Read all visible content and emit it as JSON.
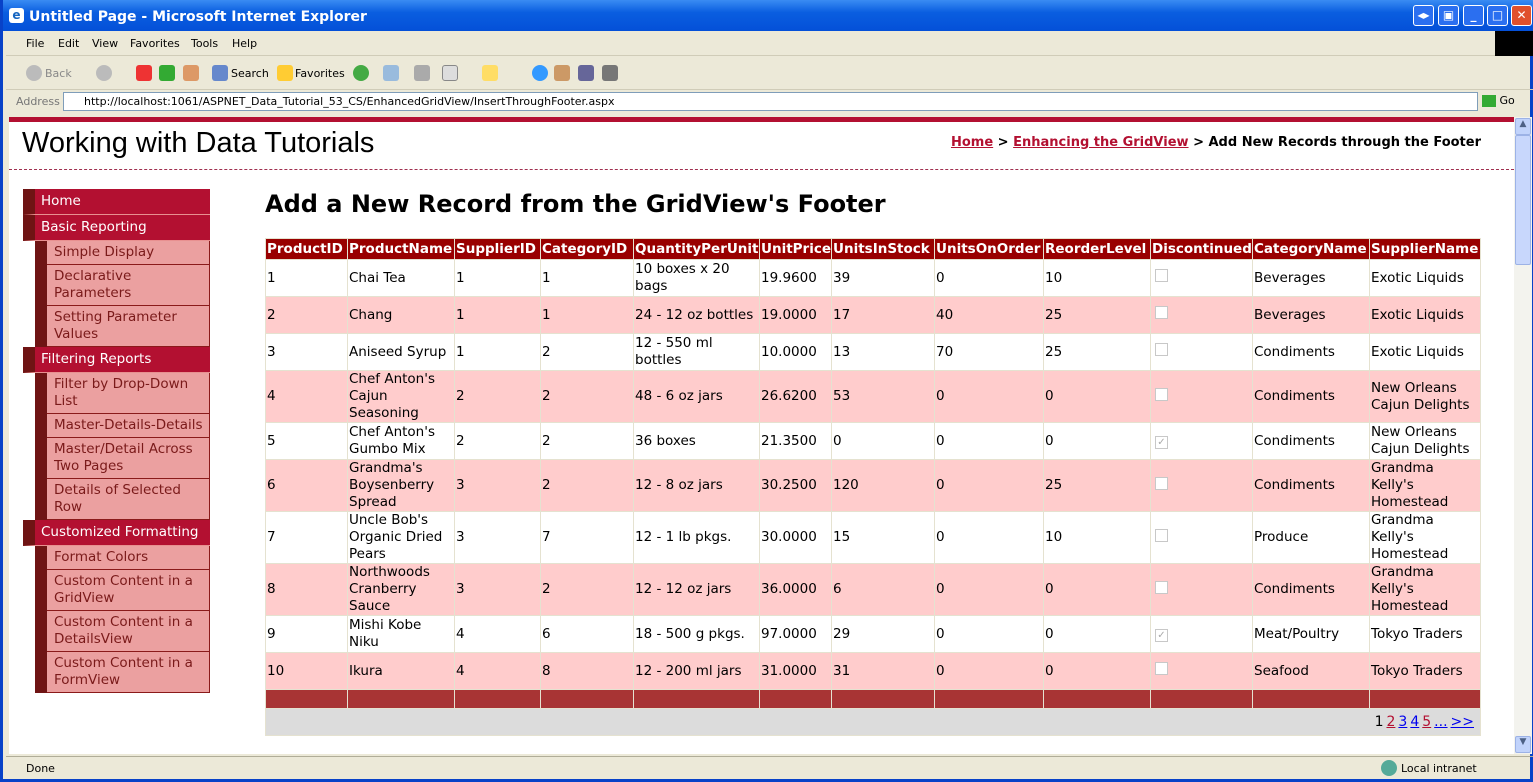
{
  "window": {
    "title": "Untitled Page - Microsoft Internet Explorer"
  },
  "menu": [
    "File",
    "Edit",
    "View",
    "Favorites",
    "Tools",
    "Help"
  ],
  "toolbar": {
    "back": "Back",
    "search": "Search",
    "favorites": "Favorites"
  },
  "address": {
    "label": "Address",
    "url": "http://localhost:1061/ASPNET_Data_Tutorial_53_CS/EnhancedGridView/InsertThroughFooter.aspx",
    "go": "Go"
  },
  "status": {
    "text": "Done",
    "zone": "Local intranet"
  },
  "page": {
    "site_title": "Working with Data Tutorials",
    "breadcrumb": {
      "home": "Home",
      "parent": "Enhancing the GridView",
      "sep": " > ",
      "current": "Add New Records through the Footer"
    },
    "heading": "Add a New Record from the GridView's Footer"
  },
  "sidebar": [
    {
      "type": "top",
      "label": "Home"
    },
    {
      "type": "top",
      "label": "Basic Reporting"
    },
    {
      "type": "sub",
      "label": "Simple Display"
    },
    {
      "type": "sub",
      "label": "Declarative Parameters"
    },
    {
      "type": "sub",
      "label": "Setting Parameter Values"
    },
    {
      "type": "top",
      "label": "Filtering Reports"
    },
    {
      "type": "sub",
      "label": "Filter by Drop-Down List"
    },
    {
      "type": "sub",
      "label": "Master-Details-Details"
    },
    {
      "type": "sub",
      "label": "Master/Detail Across Two Pages"
    },
    {
      "type": "sub",
      "label": "Details of Selected Row"
    },
    {
      "type": "top",
      "label": "Customized Formatting"
    },
    {
      "type": "sub",
      "label": "Format Colors"
    },
    {
      "type": "sub",
      "label": "Custom Content in a GridView"
    },
    {
      "type": "sub",
      "label": "Custom Content in a DetailsView"
    },
    {
      "type": "sub",
      "label": "Custom Content in a FormView"
    }
  ],
  "grid": {
    "columns": [
      "ProductID",
      "ProductName",
      "SupplierID",
      "CategoryID",
      "QuantityPerUnit",
      "UnitPrice",
      "UnitsInStock",
      "UnitsOnOrder",
      "ReorderLevel",
      "Discontinued",
      "CategoryName",
      "SupplierName"
    ],
    "rows": [
      [
        "1",
        "Chai Tea",
        "1",
        "1",
        "10 boxes x 20 bags",
        "19.9600",
        "39",
        "0",
        "10",
        false,
        "Beverages",
        "Exotic Liquids"
      ],
      [
        "2",
        "Chang",
        "1",
        "1",
        "24 - 12 oz bottles",
        "19.0000",
        "17",
        "40",
        "25",
        false,
        "Beverages",
        "Exotic Liquids"
      ],
      [
        "3",
        "Aniseed Syrup",
        "1",
        "2",
        "12 - 550 ml bottles",
        "10.0000",
        "13",
        "70",
        "25",
        false,
        "Condiments",
        "Exotic Liquids"
      ],
      [
        "4",
        "Chef Anton's Cajun Seasoning",
        "2",
        "2",
        "48 - 6 oz jars",
        "26.6200",
        "53",
        "0",
        "0",
        false,
        "Condiments",
        "New Orleans Cajun Delights"
      ],
      [
        "5",
        "Chef Anton's Gumbo Mix",
        "2",
        "2",
        "36 boxes",
        "21.3500",
        "0",
        "0",
        "0",
        true,
        "Condiments",
        "New Orleans Cajun Delights"
      ],
      [
        "6",
        "Grandma's Boysenberry Spread",
        "3",
        "2",
        "12 - 8 oz jars",
        "30.2500",
        "120",
        "0",
        "25",
        false,
        "Condiments",
        "Grandma Kelly's Homestead"
      ],
      [
        "7",
        "Uncle Bob's Organic Dried Pears",
        "3",
        "7",
        "12 - 1 lb pkgs.",
        "30.0000",
        "15",
        "0",
        "10",
        false,
        "Produce",
        "Grandma Kelly's Homestead"
      ],
      [
        "8",
        "Northwoods Cranberry Sauce",
        "3",
        "2",
        "12 - 12 oz jars",
        "36.0000",
        "6",
        "0",
        "0",
        false,
        "Condiments",
        "Grandma Kelly's Homestead"
      ],
      [
        "9",
        "Mishi Kobe Niku",
        "4",
        "6",
        "18 - 500 g pkgs.",
        "97.0000",
        "29",
        "0",
        "0",
        true,
        "Meat/Poultry",
        "Tokyo Traders"
      ],
      [
        "10",
        "Ikura",
        "4",
        "8",
        "12 - 200 ml jars",
        "31.0000",
        "31",
        "0",
        "0",
        false,
        "Seafood",
        "Tokyo Traders"
      ]
    ],
    "pager": {
      "current": "1",
      "links": [
        {
          "t": "2",
          "c": "#b31031"
        },
        {
          "t": "3",
          "c": "#0000ee"
        },
        {
          "t": "4",
          "c": "#0000ee"
        },
        {
          "t": "5",
          "c": "#b31031"
        },
        {
          "t": "...",
          "c": "#0000ee"
        },
        {
          "t": ">>",
          "c": "#0000ee"
        }
      ]
    }
  },
  "colors": {
    "accent": "#b31031",
    "header": "#990000",
    "alt_row": "#ffcccc",
    "footer": "#a83434",
    "sidebar_sub": "#eba0a0",
    "sidebar_strip": "#6f1414"
  }
}
